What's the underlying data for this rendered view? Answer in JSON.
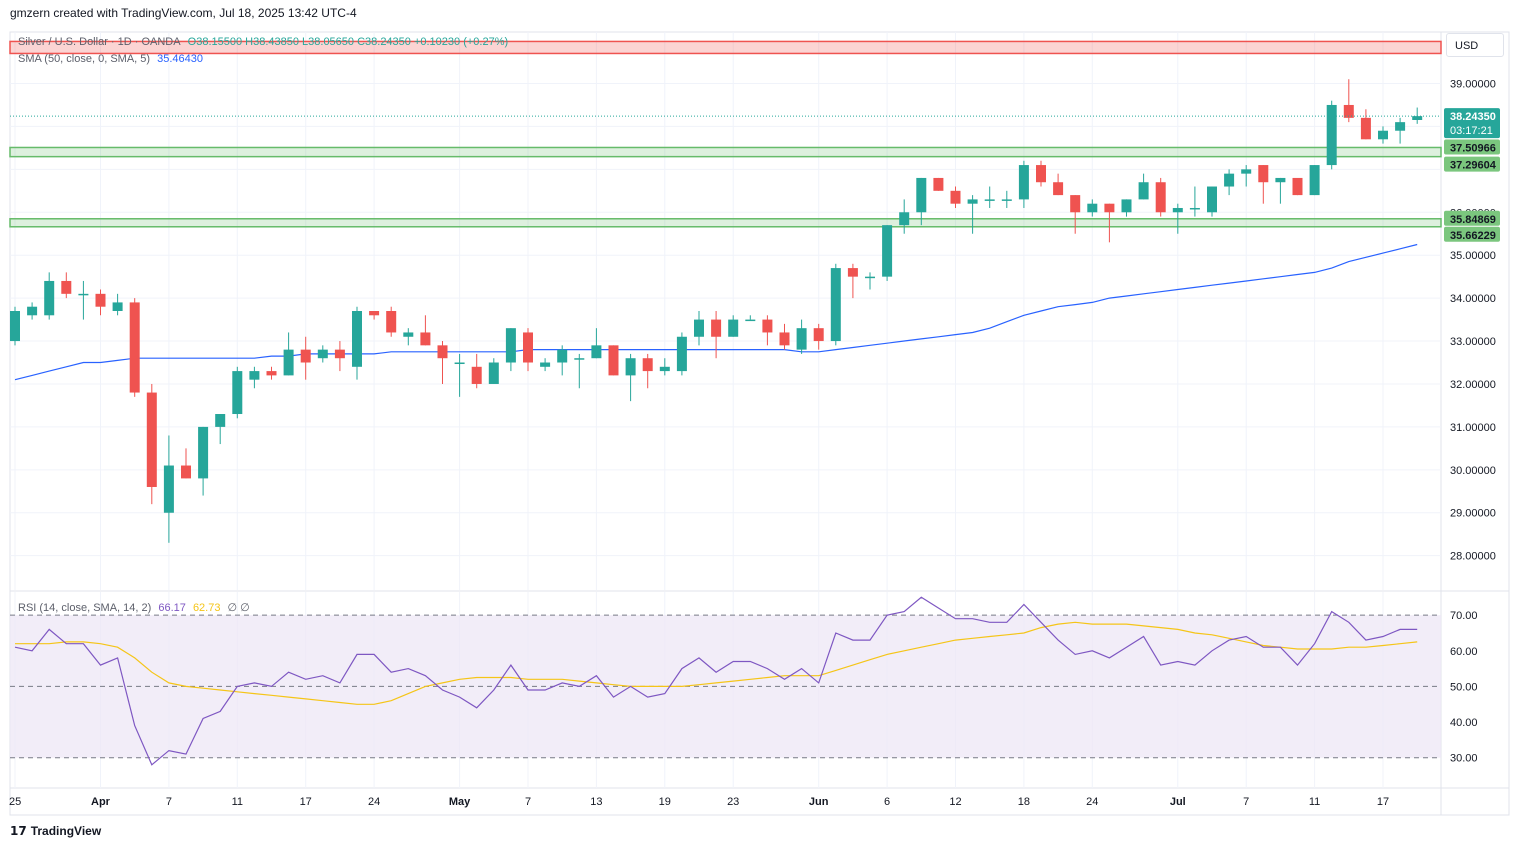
{
  "header": {
    "author_line": "gmzern created with TradingView.com, Jul 18, 2025 13:42 UTC-4"
  },
  "legend": {
    "symbol": "Silver / U.S. Dollar · 1D · OANDA",
    "ohlc": "O38.15500  H38.43850  L38.05650  C38.24350  +0.10230 (+0.27%)",
    "sma_label": "SMA (50, close, 0, SMA, 5)",
    "sma_value": "35.46430",
    "rsi_label": "RSI (14, close, SMA, 14, 2)",
    "rsi_value": "66.17",
    "rsi_ma_value": "62.73",
    "rsi_extra": "∅  ∅"
  },
  "price_scale": {
    "currency": "USD",
    "current_price": "38.24350",
    "countdown": "03:17:21",
    "zone_labels": [
      "37.50966",
      "37.29604",
      "35.84869",
      "35.66229"
    ],
    "partial_label": "36.00000"
  },
  "footer": {
    "brand": "TradingView"
  },
  "colors": {
    "up": "#26a69a",
    "down": "#ef5350",
    "sma": "#2962ff",
    "rsi": "#7e57c2",
    "rsi_ma": "#f5c518",
    "zone_green": "#66bb6a",
    "zone_red": "#ef5350",
    "rsi_band": "#ede7f6"
  },
  "chart_data": [
    {
      "type": "candlestick",
      "title": "Silver / U.S. Dollar · 1D · OANDA",
      "y_ticks": [
        28,
        29,
        30,
        31,
        32,
        33,
        34,
        35,
        36,
        37,
        38,
        39
      ],
      "ylim": [
        27.2,
        40.2
      ],
      "x_ticks": [
        {
          "i": 0,
          "label": "25"
        },
        {
          "i": 5,
          "label": "Apr"
        },
        {
          "i": 9,
          "label": "7"
        },
        {
          "i": 13,
          "label": "11"
        },
        {
          "i": 17,
          "label": "17"
        },
        {
          "i": 21,
          "label": "24"
        },
        {
          "i": 26,
          "label": "May"
        },
        {
          "i": 30,
          "label": "7"
        },
        {
          "i": 34,
          "label": "13"
        },
        {
          "i": 38,
          "label": "19"
        },
        {
          "i": 42,
          "label": "23"
        },
        {
          "i": 47,
          "label": "Jun"
        },
        {
          "i": 51,
          "label": "6"
        },
        {
          "i": 55,
          "label": "12"
        },
        {
          "i": 59,
          "label": "18"
        },
        {
          "i": 63,
          "label": "24"
        },
        {
          "i": 68,
          "label": "Jul"
        },
        {
          "i": 72,
          "label": "7"
        },
        {
          "i": 76,
          "label": "11"
        },
        {
          "i": 80,
          "label": "17"
        }
      ],
      "resistance_zone": [
        39.7,
        39.98
      ],
      "support_zones": [
        [
          37.29604,
          37.50966
        ],
        [
          35.66229,
          35.84869
        ]
      ],
      "ohlc": [
        [
          33.0,
          33.8,
          32.9,
          33.7
        ],
        [
          33.6,
          33.9,
          33.5,
          33.8
        ],
        [
          33.6,
          34.6,
          33.5,
          34.4
        ],
        [
          34.4,
          34.6,
          34.0,
          34.1
        ],
        [
          34.1,
          34.4,
          33.5,
          34.1
        ],
        [
          34.1,
          34.2,
          33.6,
          33.8
        ],
        [
          33.7,
          34.1,
          33.6,
          33.9
        ],
        [
          33.9,
          34.0,
          31.7,
          31.8
        ],
        [
          31.8,
          32.0,
          29.2,
          29.6
        ],
        [
          29.0,
          30.8,
          28.3,
          30.1
        ],
        [
          30.1,
          30.5,
          29.8,
          29.8
        ],
        [
          29.8,
          31.0,
          29.4,
          31.0
        ],
        [
          31.0,
          31.3,
          30.6,
          31.3
        ],
        [
          31.3,
          32.4,
          31.2,
          32.3
        ],
        [
          32.1,
          32.4,
          31.9,
          32.3
        ],
        [
          32.3,
          32.4,
          32.1,
          32.2
        ],
        [
          32.2,
          33.2,
          32.2,
          32.8
        ],
        [
          32.8,
          33.1,
          32.1,
          32.5
        ],
        [
          32.6,
          32.9,
          32.5,
          32.8
        ],
        [
          32.8,
          33.0,
          32.3,
          32.6
        ],
        [
          32.4,
          33.8,
          32.1,
          33.7
        ],
        [
          33.7,
          33.7,
          33.5,
          33.6
        ],
        [
          33.7,
          33.8,
          33.1,
          33.2
        ],
        [
          33.1,
          33.3,
          32.9,
          33.2
        ],
        [
          33.2,
          33.6,
          32.9,
          32.9
        ],
        [
          32.9,
          33.0,
          32.0,
          32.6
        ],
        [
          32.5,
          32.7,
          31.7,
          32.5
        ],
        [
          32.4,
          32.7,
          31.9,
          32.0
        ],
        [
          32.0,
          32.6,
          32.0,
          32.5
        ],
        [
          32.5,
          33.3,
          32.3,
          33.3
        ],
        [
          33.2,
          33.3,
          32.3,
          32.5
        ],
        [
          32.4,
          32.6,
          32.3,
          32.5
        ],
        [
          32.5,
          32.9,
          32.2,
          32.8
        ],
        [
          32.6,
          32.7,
          31.9,
          32.6
        ],
        [
          32.6,
          33.3,
          32.6,
          32.9
        ],
        [
          32.9,
          32.9,
          32.2,
          32.2
        ],
        [
          32.2,
          32.7,
          31.6,
          32.6
        ],
        [
          32.6,
          32.7,
          31.9,
          32.3
        ],
        [
          32.3,
          32.6,
          32.2,
          32.4
        ],
        [
          32.3,
          33.2,
          32.2,
          33.1
        ],
        [
          33.1,
          33.7,
          32.9,
          33.5
        ],
        [
          33.5,
          33.7,
          32.6,
          33.1
        ],
        [
          33.1,
          33.6,
          33.1,
          33.5
        ],
        [
          33.5,
          33.6,
          33.5,
          33.5
        ],
        [
          33.5,
          33.6,
          32.9,
          33.2
        ],
        [
          33.2,
          33.4,
          32.8,
          32.9
        ],
        [
          32.8,
          33.5,
          32.7,
          33.3
        ],
        [
          33.3,
          33.4,
          32.8,
          33.0
        ],
        [
          33.0,
          34.8,
          32.9,
          34.7
        ],
        [
          34.7,
          34.8,
          34.0,
          34.5
        ],
        [
          34.5,
          34.6,
          34.2,
          34.5
        ],
        [
          34.5,
          35.7,
          34.4,
          35.7
        ],
        [
          35.7,
          36.3,
          35.5,
          36.0
        ],
        [
          36.0,
          36.8,
          35.7,
          36.8
        ],
        [
          36.8,
          36.8,
          36.5,
          36.5
        ],
        [
          36.5,
          36.6,
          36.1,
          36.2
        ],
        [
          36.2,
          36.4,
          35.5,
          36.3
        ],
        [
          36.3,
          36.6,
          36.1,
          36.3
        ],
        [
          36.3,
          36.5,
          36.1,
          36.3
        ],
        [
          36.3,
          37.2,
          36.1,
          37.1
        ],
        [
          37.1,
          37.2,
          36.6,
          36.7
        ],
        [
          36.7,
          36.9,
          36.4,
          36.4
        ],
        [
          36.4,
          36.4,
          35.5,
          36.0
        ],
        [
          36.0,
          36.3,
          35.9,
          36.2
        ],
        [
          36.2,
          36.2,
          35.3,
          36.0
        ],
        [
          36.0,
          36.3,
          35.9,
          36.3
        ],
        [
          36.3,
          36.9,
          36.3,
          36.7
        ],
        [
          36.7,
          36.8,
          35.9,
          36.0
        ],
        [
          36.0,
          36.2,
          35.5,
          36.1
        ],
        [
          36.1,
          36.6,
          35.9,
          36.1
        ],
        [
          36.0,
          36.6,
          35.9,
          36.6
        ],
        [
          36.6,
          37.0,
          36.4,
          36.9
        ],
        [
          36.9,
          37.1,
          36.6,
          37.0
        ],
        [
          37.1,
          37.1,
          36.2,
          36.7
        ],
        [
          36.7,
          36.8,
          36.2,
          36.8
        ],
        [
          36.8,
          36.8,
          36.4,
          36.4
        ],
        [
          36.4,
          37.1,
          36.4,
          37.1
        ],
        [
          37.1,
          38.6,
          37.0,
          38.5
        ],
        [
          38.5,
          39.1,
          38.1,
          38.2
        ],
        [
          38.2,
          38.4,
          37.7,
          37.7
        ],
        [
          37.7,
          38.0,
          37.6,
          37.9
        ],
        [
          37.9,
          38.2,
          37.6,
          38.1
        ],
        [
          38.15,
          38.44,
          38.06,
          38.24
        ]
      ],
      "sma": [
        32.1,
        32.2,
        32.3,
        32.4,
        32.5,
        32.5,
        32.55,
        32.6,
        32.6,
        32.6,
        32.6,
        32.6,
        32.6,
        32.6,
        32.6,
        32.65,
        32.65,
        32.7,
        32.7,
        32.7,
        32.7,
        32.7,
        32.75,
        32.75,
        32.75,
        32.75,
        32.75,
        32.75,
        32.75,
        32.75,
        32.8,
        32.8,
        32.8,
        32.8,
        32.8,
        32.8,
        32.8,
        32.8,
        32.8,
        32.8,
        32.8,
        32.8,
        32.8,
        32.8,
        32.8,
        32.8,
        32.75,
        32.75,
        32.8,
        32.85,
        32.9,
        32.95,
        33.0,
        33.05,
        33.1,
        33.15,
        33.2,
        33.3,
        33.45,
        33.6,
        33.7,
        33.8,
        33.85,
        33.9,
        34.0,
        34.05,
        34.1,
        34.15,
        34.2,
        34.25,
        34.3,
        34.35,
        34.4,
        34.45,
        34.5,
        34.55,
        34.6,
        34.7,
        34.85,
        34.95,
        35.05,
        35.15,
        35.25
      ]
    },
    {
      "type": "line",
      "title": "RSI (14, close, SMA, 14, 2)",
      "y_ticks": [
        30,
        40,
        50,
        60,
        70
      ],
      "ylim": [
        21.5,
        76.5
      ],
      "band": [
        30,
        70
      ],
      "series": [
        {
          "name": "RSI",
          "values": [
            61,
            60,
            66,
            62,
            62,
            56,
            58,
            39,
            28,
            32,
            31,
            41,
            43,
            50,
            51,
            50,
            54,
            52,
            53,
            51,
            59,
            59,
            54,
            55,
            53,
            49,
            47,
            44,
            49,
            56,
            49,
            49,
            51,
            50,
            53,
            47,
            50,
            47,
            48,
            55,
            58,
            54,
            57,
            57,
            55,
            52,
            55,
            51,
            65,
            63,
            63,
            70,
            71,
            75,
            72,
            69,
            69,
            68,
            68,
            73,
            68,
            63,
            59,
            60,
            58,
            61,
            64,
            56,
            57,
            56,
            60,
            63,
            64,
            61,
            61,
            56,
            62,
            71,
            68,
            63,
            64,
            66,
            66
          ]
        },
        {
          "name": "SMA",
          "values": [
            62,
            62,
            62,
            62.5,
            62.5,
            62,
            61,
            58,
            54,
            51,
            50,
            49.5,
            49,
            48.5,
            48,
            47.5,
            47,
            46.5,
            46,
            45.5,
            45,
            45,
            46,
            48,
            50,
            51,
            52,
            52.5,
            52.5,
            52.5,
            52,
            52,
            52,
            51.5,
            51,
            50.5,
            50,
            50,
            50,
            50,
            50.5,
            51,
            51.5,
            52,
            52.5,
            53,
            53,
            53,
            54.5,
            56,
            57.5,
            59,
            60,
            61,
            62,
            63,
            63.5,
            64,
            64.5,
            65,
            66.5,
            67.5,
            68,
            67.5,
            67.5,
            67.5,
            67,
            66.5,
            66,
            65,
            64.5,
            63.5,
            62.5,
            61.5,
            61,
            60.5,
            60.5,
            60.5,
            61,
            61,
            61.5,
            62,
            62.5
          ]
        }
      ]
    }
  ]
}
